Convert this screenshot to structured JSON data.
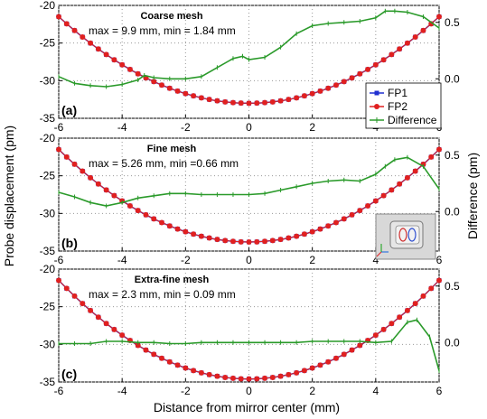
{
  "figure": {
    "ylabel_left": "Probe displacement  (pm)",
    "ylabel_right": "Difference (pm)",
    "xlabel": "Distance from mirror center (mm)",
    "inset_label": "inset-model-icon"
  },
  "chart_data": [
    {
      "type": "line",
      "panel_label": "(a)",
      "title": "Coarse mesh",
      "subtitle": "max = 9.9 mm, min = 1.84 mm",
      "xlim": [
        -6,
        6
      ],
      "ylim_left": [
        -35,
        -20
      ],
      "ylim_right": [
        -0.35,
        0.65
      ],
      "x_ticks": [
        "-6",
        "-4",
        "-2",
        "0",
        "2",
        "4",
        "6"
      ],
      "y_ticks_left": [
        "-35",
        "-30",
        "-25",
        "-20"
      ],
      "y_ticks_right": [
        "0.0",
        "0.5"
      ],
      "grid": true,
      "legend": {
        "position": "right",
        "entries": [
          "FP1",
          "FP2",
          "Difference"
        ]
      },
      "colors": {
        "FP1": "#1f2fd0",
        "FP2": "#e02020",
        "Difference": "#2a9a2a"
      },
      "parabola": {
        "vertex_y": -33.0,
        "edge_y": -21.5
      },
      "difference": {
        "x": [
          -6,
          -5.5,
          -5,
          -4.5,
          -4,
          -3.5,
          -3.3,
          -3,
          -2.5,
          -2,
          -1.5,
          -1,
          -0.5,
          -0.2,
          0,
          0.5,
          1,
          1.5,
          2,
          2.5,
          3,
          3.5,
          4,
          4.3,
          4.6,
          5,
          5.5,
          6
        ],
        "y": [
          0.02,
          -0.04,
          -0.06,
          -0.07,
          -0.05,
          -0.01,
          0.03,
          0.01,
          0.0,
          0.0,
          0.02,
          0.1,
          0.18,
          0.2,
          0.17,
          0.19,
          0.28,
          0.4,
          0.47,
          0.49,
          0.5,
          0.51,
          0.54,
          0.6,
          0.6,
          0.59,
          0.55,
          0.45
        ]
      }
    },
    {
      "type": "line",
      "panel_label": "(b)",
      "title": "Fine mesh",
      "subtitle": "max = 5.26 mm, min =0.66 mm",
      "xlim": [
        -6,
        6
      ],
      "ylim_left": [
        -35,
        -20
      ],
      "ylim_right": [
        -0.35,
        0.65
      ],
      "x_ticks": [
        "-6",
        "-4",
        "-2",
        "0",
        "2",
        "4",
        "6"
      ],
      "y_ticks_left": [
        "-35",
        "-30",
        "-25",
        "-20"
      ],
      "y_ticks_right": [
        "0.0",
        "0.5"
      ],
      "grid": true,
      "colors": {
        "FP1": "#1f2fd0",
        "FP2": "#e02020",
        "Difference": "#2a9a2a"
      },
      "parabola": {
        "vertex_y": -33.8,
        "edge_y": -21.5
      },
      "difference": {
        "x": [
          -6,
          -5.5,
          -5,
          -4.5,
          -4,
          -3.5,
          -3,
          -2.5,
          -2,
          -1.5,
          -1,
          -0.5,
          0,
          0.5,
          1,
          1.5,
          2,
          2.5,
          3,
          3.5,
          4,
          4.3,
          4.6,
          5,
          5.5,
          6
        ],
        "y": [
          0.17,
          0.13,
          0.08,
          0.05,
          0.08,
          0.12,
          0.14,
          0.16,
          0.16,
          0.15,
          0.15,
          0.15,
          0.15,
          0.16,
          0.19,
          0.22,
          0.25,
          0.27,
          0.28,
          0.27,
          0.33,
          0.4,
          0.46,
          0.48,
          0.4,
          0.2
        ]
      }
    },
    {
      "type": "line",
      "panel_label": "(c)",
      "title": "Extra-fine mesh",
      "subtitle": "max = 2.3 mm, min = 0.09 mm",
      "xlim": [
        -6,
        6
      ],
      "ylim_left": [
        -35,
        -20
      ],
      "ylim_right": [
        -0.35,
        0.65
      ],
      "x_ticks": [
        "-6",
        "-4",
        "-2",
        "0",
        "2",
        "4",
        "6"
      ],
      "y_ticks_left": [
        "-35",
        "-30",
        "-25",
        "-20"
      ],
      "y_ticks_right": [
        "0.0",
        "0.5"
      ],
      "grid": true,
      "colors": {
        "FP1": "#1f2fd0",
        "FP2": "#e02020",
        "Difference": "#2a9a2a"
      },
      "parabola": {
        "vertex_y": -34.6,
        "edge_y": -21.5
      },
      "difference": {
        "x": [
          -6,
          -5.5,
          -5,
          -4.5,
          -4,
          -3.5,
          -3,
          -2.5,
          -2,
          -1.5,
          -1,
          -0.5,
          0,
          0.5,
          1,
          1.5,
          2,
          2.5,
          3,
          3.5,
          4,
          4.5,
          5,
          5.3,
          5.7,
          6
        ],
        "y": [
          -0.01,
          -0.01,
          -0.01,
          0.01,
          0.01,
          0.0,
          0.0,
          -0.01,
          -0.01,
          0.0,
          0.0,
          0.0,
          0.0,
          0.0,
          0.0,
          0.0,
          0.01,
          0.01,
          0.01,
          0.01,
          0.0,
          0.01,
          0.18,
          0.2,
          0.05,
          -0.25
        ]
      }
    }
  ]
}
